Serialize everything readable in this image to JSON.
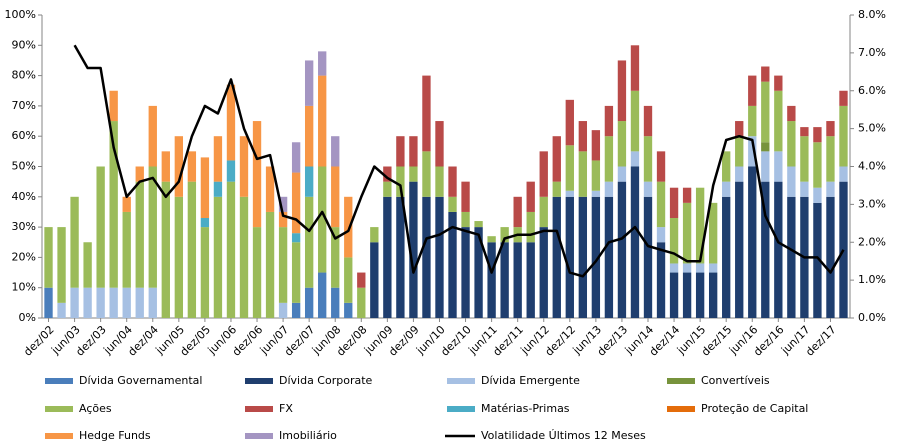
{
  "chart_data": {
    "type": "bar",
    "stacked": true,
    "grid": false,
    "categories": [
      "dez/02",
      null,
      "jun/03",
      null,
      "dez/03",
      null,
      "jun/04",
      null,
      "dez/04",
      null,
      "jun/05",
      null,
      "dez/05",
      null,
      "jun/06",
      null,
      "dez/06",
      null,
      "jun/07",
      null,
      "dez/07",
      null,
      "jun/08",
      null,
      "dez/08",
      null,
      "jun/09",
      null,
      "dez/09",
      null,
      "jun/10",
      null,
      "dez/10",
      null,
      "jun/11",
      null,
      "dez/11",
      null,
      "jun/12",
      null,
      "dez/12",
      null,
      "jun/13",
      null,
      "dez/13",
      null,
      "jun/14",
      null,
      "dez/14",
      null,
      "jun/15",
      null,
      "dez/15",
      null,
      "jun/16",
      null,
      "dez/16",
      null,
      "jun/17",
      null,
      "dez/17",
      null
    ],
    "ylim": [
      0,
      100
    ],
    "yticks": [
      {
        "value": 0,
        "label": "0%"
      },
      {
        "value": 10,
        "label": "10%"
      },
      {
        "value": 20,
        "label": "20%"
      },
      {
        "value": 30,
        "label": "30%"
      },
      {
        "value": 40,
        "label": "40%"
      },
      {
        "value": 50,
        "label": "50%"
      },
      {
        "value": 60,
        "label": "60%"
      },
      {
        "value": 70,
        "label": "70%"
      },
      {
        "value": 80,
        "label": "80%"
      },
      {
        "value": 90,
        "label": "90%"
      },
      {
        "value": 100,
        "label": "100%"
      }
    ],
    "y2lim": [
      0,
      8
    ],
    "y2ticks": [
      {
        "value": 0,
        "label": "0.0%"
      },
      {
        "value": 1,
        "label": "1.0%"
      },
      {
        "value": 2,
        "label": "2.0%"
      },
      {
        "value": 3,
        "label": "3.0%"
      },
      {
        "value": 4,
        "label": "4.0%"
      },
      {
        "value": 5,
        "label": "5.0%"
      },
      {
        "value": 6,
        "label": "6.0%"
      },
      {
        "value": 7,
        "label": "7.0%"
      },
      {
        "value": 8,
        "label": "8.0%"
      }
    ],
    "series": [
      {
        "name": "Dívida Governamental",
        "color": "#4a7ebb",
        "values": [
          10,
          0,
          0,
          0,
          0,
          0,
          0,
          0,
          0,
          0,
          0,
          0,
          0,
          0,
          0,
          0,
          0,
          0,
          0,
          5,
          10,
          15,
          10,
          5,
          0,
          0,
          0,
          0,
          0,
          0,
          0,
          0,
          0,
          0,
          0,
          0,
          0,
          0,
          0,
          0,
          0,
          0,
          0,
          0,
          0,
          0,
          0,
          0,
          0,
          0,
          0,
          0,
          0,
          0,
          0,
          0,
          0,
          0,
          0,
          0,
          0,
          0
        ]
      },
      {
        "name": "Dívida Corporate",
        "color": "#1f3e6e",
        "values": [
          0,
          0,
          0,
          0,
          0,
          0,
          0,
          0,
          0,
          0,
          0,
          0,
          0,
          0,
          0,
          0,
          0,
          0,
          0,
          0,
          0,
          0,
          0,
          0,
          0,
          25,
          40,
          40,
          45,
          40,
          40,
          35,
          30,
          30,
          25,
          25,
          25,
          25,
          30,
          40,
          40,
          40,
          40,
          40,
          45,
          50,
          40,
          25,
          15,
          15,
          15,
          15,
          40,
          45,
          50,
          45,
          45,
          40,
          40,
          38,
          40,
          45
        ]
      },
      {
        "name": "Dívida Emergente",
        "color": "#a6c0e3",
        "values": [
          0,
          5,
          10,
          10,
          10,
          10,
          10,
          10,
          10,
          0,
          0,
          0,
          0,
          0,
          0,
          0,
          0,
          0,
          5,
          0,
          0,
          0,
          0,
          0,
          0,
          0,
          0,
          0,
          0,
          0,
          0,
          0,
          0,
          0,
          0,
          0,
          0,
          0,
          0,
          0,
          2,
          0,
          2,
          5,
          5,
          5,
          5,
          5,
          3,
          3,
          3,
          3,
          5,
          5,
          10,
          10,
          10,
          10,
          5,
          5,
          5,
          5
        ]
      },
      {
        "name": "Convertíveis",
        "color": "#77933c",
        "values": [
          0,
          0,
          0,
          0,
          0,
          0,
          0,
          0,
          0,
          0,
          0,
          0,
          0,
          0,
          0,
          0,
          0,
          0,
          0,
          0,
          0,
          0,
          0,
          0,
          0,
          0,
          0,
          0,
          0,
          0,
          0,
          0,
          0,
          0,
          0,
          0,
          0,
          0,
          0,
          0,
          0,
          0,
          0,
          0,
          0,
          0,
          0,
          0,
          0,
          0,
          0,
          0,
          0,
          0,
          0,
          3,
          0,
          0,
          0,
          0,
          0,
          0
        ]
      },
      {
        "name": "Ações",
        "color": "#9bbb59",
        "values": [
          20,
          25,
          30,
          15,
          40,
          55,
          25,
          35,
          40,
          45,
          40,
          45,
          30,
          40,
          45,
          40,
          30,
          35,
          25,
          20,
          30,
          35,
          20,
          15,
          10,
          5,
          5,
          10,
          5,
          15,
          10,
          5,
          5,
          2,
          2,
          5,
          5,
          10,
          10,
          5,
          15,
          15,
          10,
          15,
          15,
          20,
          15,
          15,
          15,
          20,
          25,
          20,
          10,
          10,
          10,
          20,
          20,
          15,
          15,
          15,
          15,
          20
        ]
      },
      {
        "name": "FX",
        "color": "#b94a48",
        "values": [
          0,
          0,
          0,
          0,
          0,
          0,
          0,
          0,
          0,
          0,
          0,
          0,
          0,
          0,
          0,
          0,
          0,
          0,
          0,
          0,
          0,
          0,
          0,
          0,
          5,
          0,
          5,
          10,
          10,
          25,
          15,
          10,
          10,
          0,
          0,
          0,
          10,
          10,
          15,
          15,
          15,
          10,
          10,
          10,
          20,
          15,
          10,
          10,
          10,
          5,
          0,
          0,
          0,
          5,
          10,
          5,
          5,
          5,
          3,
          5,
          5,
          5
        ]
      },
      {
        "name": "Matérias-Primas",
        "color": "#4bacc6",
        "values": [
          0,
          0,
          0,
          0,
          0,
          0,
          0,
          0,
          0,
          0,
          0,
          0,
          3,
          5,
          7,
          0,
          0,
          0,
          0,
          3,
          10,
          0,
          0,
          0,
          0,
          0,
          0,
          0,
          0,
          0,
          0,
          0,
          0,
          0,
          0,
          0,
          0,
          0,
          0,
          0,
          0,
          0,
          0,
          0,
          0,
          0,
          0,
          0,
          0,
          0,
          0,
          0,
          0,
          0,
          0,
          0,
          0,
          0,
          0,
          0,
          0,
          0
        ]
      },
      {
        "name": "Proteção de Capital",
        "color": "#e46c0a",
        "values": [
          0,
          0,
          0,
          0,
          0,
          0,
          0,
          0,
          0,
          0,
          0,
          0,
          0,
          0,
          0,
          0,
          0,
          0,
          0,
          0,
          0,
          0,
          0,
          0,
          0,
          0,
          0,
          0,
          0,
          0,
          0,
          0,
          0,
          0,
          0,
          0,
          0,
          0,
          0,
          0,
          0,
          0,
          0,
          0,
          0,
          0,
          0,
          0,
          0,
          0,
          0,
          0,
          0,
          0,
          0,
          0,
          0,
          0,
          0,
          0,
          0,
          0
        ]
      },
      {
        "name": "Hedge Funds",
        "color": "#f79646",
        "values": [
          0,
          0,
          0,
          0,
          0,
          10,
          5,
          5,
          20,
          10,
          20,
          10,
          20,
          15,
          25,
          20,
          35,
          15,
          5,
          20,
          20,
          30,
          20,
          20,
          0,
          0,
          0,
          0,
          0,
          0,
          0,
          0,
          0,
          0,
          0,
          0,
          0,
          0,
          0,
          0,
          0,
          0,
          0,
          0,
          0,
          0,
          0,
          0,
          0,
          0,
          0,
          0,
          0,
          0,
          0,
          0,
          0,
          0,
          0,
          0,
          0,
          0
        ]
      },
      {
        "name": "Imobiliário",
        "color": "#a495c2",
        "values": [
          0,
          0,
          0,
          0,
          0,
          0,
          0,
          0,
          0,
          0,
          0,
          0,
          0,
          0,
          0,
          0,
          0,
          0,
          5,
          10,
          15,
          8,
          10,
          0,
          0,
          0,
          0,
          0,
          0,
          0,
          0,
          0,
          0,
          0,
          0,
          0,
          0,
          0,
          0,
          0,
          0,
          0,
          0,
          0,
          0,
          0,
          0,
          0,
          0,
          0,
          0,
          0,
          0,
          0,
          0,
          0,
          0,
          0,
          0,
          0,
          0,
          0
        ]
      },
      {
        "name": "Volatilidade Últimos 12 Meses",
        "type": "line",
        "axis": "y2",
        "color": "#000000",
        "values": [
          null,
          null,
          7.2,
          6.6,
          6.6,
          4.5,
          3.2,
          3.6,
          3.7,
          3.2,
          3.6,
          4.8,
          5.6,
          5.4,
          6.3,
          5.0,
          4.2,
          4.3,
          2.7,
          2.6,
          2.3,
          2.8,
          2.1,
          2.3,
          3.2,
          4.0,
          3.7,
          3.5,
          1.2,
          2.1,
          2.2,
          2.4,
          2.3,
          2.2,
          1.2,
          2.1,
          2.2,
          2.2,
          2.3,
          2.3,
          1.2,
          1.1,
          1.5,
          2.0,
          2.1,
          2.4,
          1.9,
          1.8,
          1.7,
          1.5,
          1.5,
          3.5,
          4.7,
          4.8,
          4.7,
          2.7,
          2.0,
          1.8,
          1.6,
          1.6,
          1.2,
          1.8
        ]
      }
    ]
  }
}
